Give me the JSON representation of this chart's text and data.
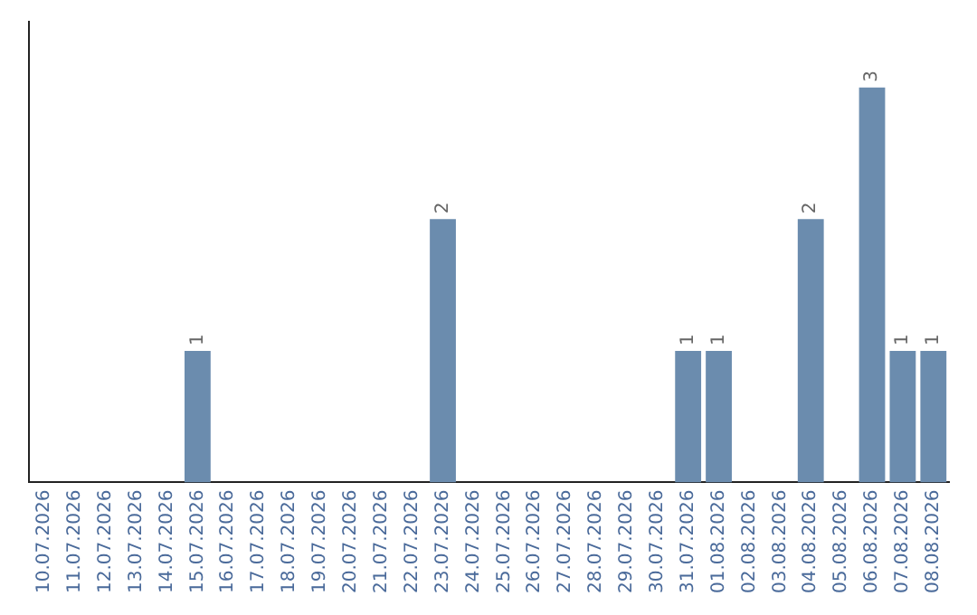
{
  "chart_data": {
    "type": "bar",
    "categories": [
      "10.07.2026",
      "11.07.2026",
      "12.07.2026",
      "13.07.2026",
      "14.07.2026",
      "15.07.2026",
      "16.07.2026",
      "17.07.2026",
      "18.07.2026",
      "19.07.2026",
      "20.07.2026",
      "21.07.2026",
      "22.07.2026",
      "23.07.2026",
      "24.07.2026",
      "25.07.2026",
      "26.07.2026",
      "27.07.2026",
      "28.07.2026",
      "29.07.2026",
      "30.07.2026",
      "31.07.2026",
      "01.08.2026",
      "02.08.2026",
      "03.08.2026",
      "04.08.2026",
      "05.08.2026",
      "06.08.2026",
      "07.08.2026",
      "08.08.2026"
    ],
    "values": [
      0,
      0,
      0,
      0,
      0,
      1,
      0,
      0,
      0,
      0,
      0,
      0,
      0,
      2,
      0,
      0,
      0,
      0,
      0,
      0,
      0,
      1,
      1,
      0,
      0,
      2,
      0,
      3,
      1,
      1
    ],
    "color": "#6b8cae",
    "value_labels": [
      null,
      null,
      null,
      null,
      null,
      "1",
      null,
      null,
      null,
      null,
      null,
      null,
      null,
      "2",
      null,
      null,
      null,
      null,
      null,
      null,
      null,
      "1",
      "1",
      null,
      null,
      "2",
      null,
      "3",
      "1",
      "1"
    ],
    "tick_labels": "x",
    "grid": false,
    "legend": false
  }
}
